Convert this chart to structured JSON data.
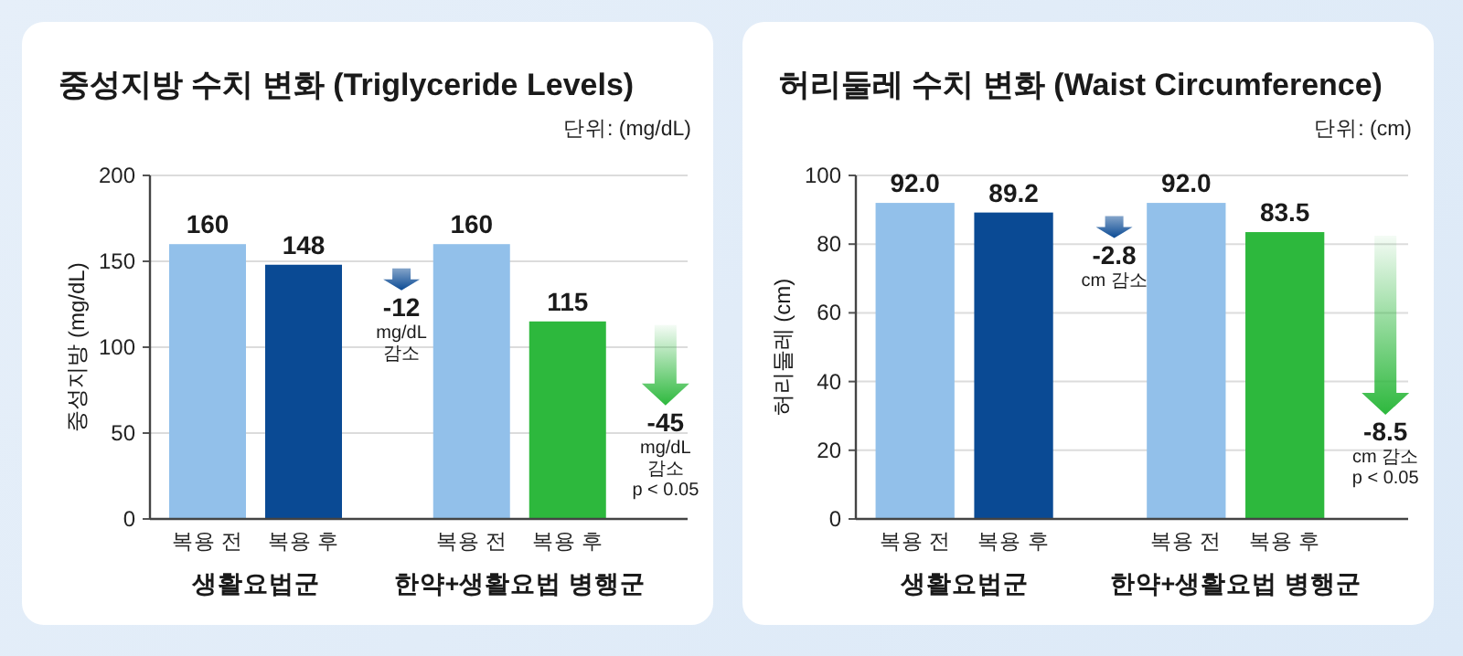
{
  "chart_data": [
    {
      "type": "bar",
      "title": "중성지방 수치 변화 (Triglyceride Levels)",
      "subtitle": "단위: (mg/dL)",
      "ylabel": "중성지방 (mg/dL)",
      "categories": [
        "복용 전",
        "복용 후",
        "복용 전",
        "복용 후"
      ],
      "values": [
        160,
        148,
        160,
        115
      ],
      "colors": [
        "#92c0ea",
        "#0a4a94",
        "#92c0ea",
        "#2db83d"
      ],
      "ylim": [
        0,
        200
      ],
      "yticks": [
        0,
        50,
        100,
        150,
        200
      ],
      "grid": "y",
      "data_labels": true,
      "annotations": [
        "생활요법군",
        "한약+생활요법 병행군",
        "-12\nmg/dL\n감소",
        "-45\nmg/dL\n감소\np < 0.05"
      ]
    },
    {
      "type": "bar",
      "title": "허리둘레 수치 변화 (Waist Circumference)",
      "subtitle": "단위: (cm)",
      "ylabel": "허리둘레 (cm)",
      "categories": [
        "복용 전",
        "복용 후",
        "복용 전",
        "복용 후"
      ],
      "values": [
        92.0,
        89.2,
        92.0,
        83.5
      ],
      "value_labels": [
        "92.0",
        "89.2",
        "92.0",
        "83.5"
      ],
      "colors": [
        "#92c0ea",
        "#0a4a94",
        "#92c0ea",
        "#2db83d"
      ],
      "ylim": [
        0,
        100
      ],
      "yticks": [
        0,
        20,
        40,
        60,
        80,
        100
      ],
      "grid": "y",
      "annotations": [
        "생활요법군",
        "한약+생활요법 병행군",
        "-2.8\ncm 감소",
        "-8.5\ncm 감소\np < 0.05"
      ]
    }
  ]
}
